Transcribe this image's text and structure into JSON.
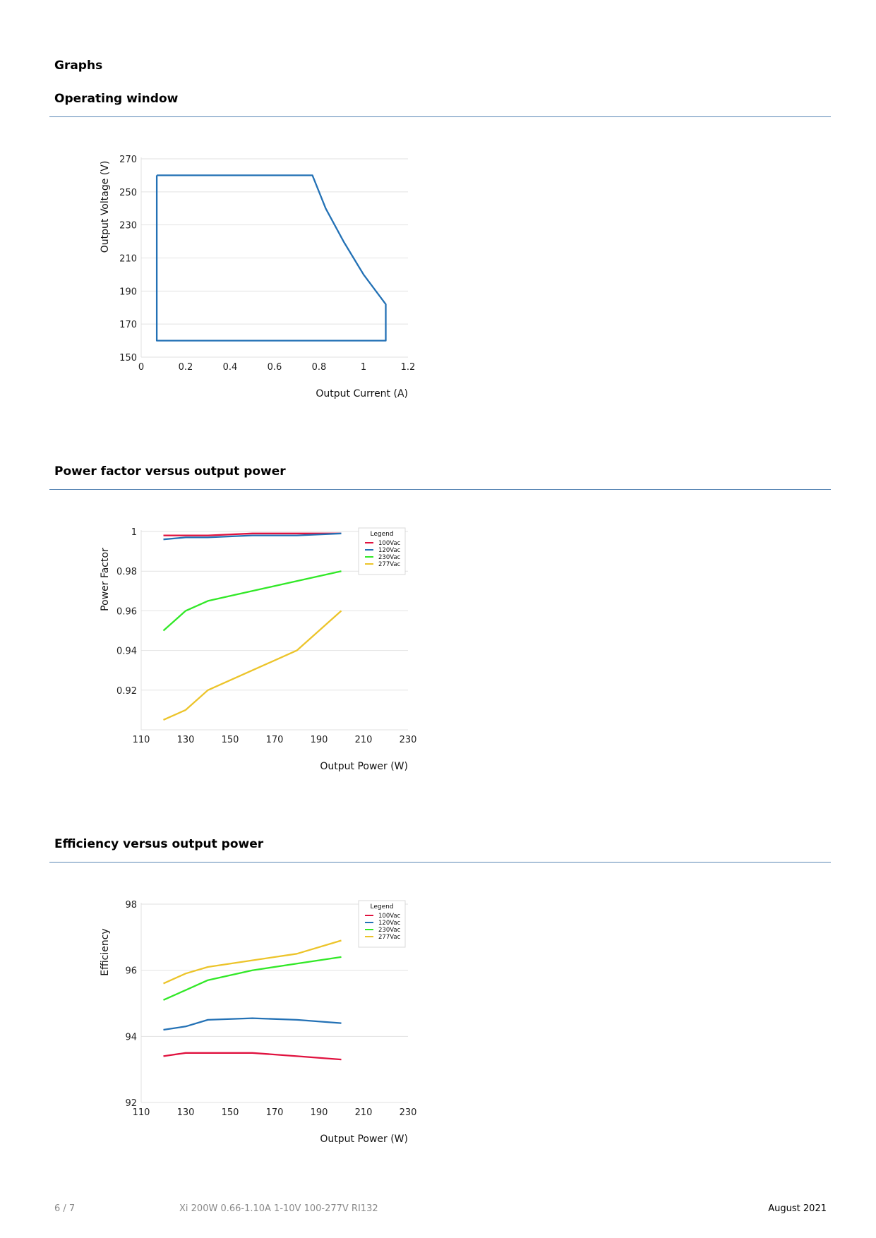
{
  "page": {
    "section_title": "Graphs",
    "footer": {
      "page_number": "6 / 7",
      "product": "Xi 200W 0.66-1.10A 1-10V 100-277V RI132",
      "date": "August 2021"
    }
  },
  "sections": [
    {
      "title": "Operating window"
    },
    {
      "title": "Power factor versus output power"
    },
    {
      "title": "Efficiency versus output power"
    }
  ],
  "colors": {
    "rule": "#5a87b5",
    "grid": "#e2e2e2",
    "tick_text": "#222222"
  },
  "chart_data": [
    {
      "type": "line",
      "title": "",
      "xlabel": "Output Current (A)",
      "ylabel": "Output Voltage (V)",
      "xlim": [
        0,
        1.2
      ],
      "ylim": [
        150,
        270
      ],
      "xticks": [
        0,
        0.2,
        0.4,
        0.6,
        0.8,
        1,
        1.2
      ],
      "xtick_labels": [
        "0",
        "0.2",
        "0.4",
        "0.6",
        "0.8",
        "1",
        "1.2"
      ],
      "yticks": [
        150,
        170,
        190,
        210,
        230,
        250,
        270
      ],
      "ytick_labels": [
        "150",
        "170",
        "190",
        "210",
        "230",
        "250",
        "270"
      ],
      "grid": true,
      "legend": null,
      "series": [
        {
          "color": "#2371b5",
          "x": [
            0.07,
            0.77,
            0.83,
            0.91,
            1.0,
            1.1,
            1.1,
            0.07,
            0.07
          ],
          "y": [
            260,
            260,
            240,
            220,
            200,
            182,
            160,
            160,
            260
          ]
        }
      ]
    },
    {
      "type": "line",
      "title": "",
      "xlabel": "Output Power (W)",
      "ylabel": "Power Factor",
      "xlim": [
        110,
        230
      ],
      "ylim": [
        0.9,
        1.0
      ],
      "xticks": [
        110,
        130,
        150,
        170,
        190,
        210,
        230
      ],
      "xtick_labels": [
        "110",
        "130",
        "150",
        "170",
        "190",
        "210",
        "230"
      ],
      "yticks": [
        0.92,
        0.94,
        0.96,
        0.98,
        1.0
      ],
      "ytick_labels": [
        "0.92",
        "0.94",
        "0.96",
        "0.98",
        "1"
      ],
      "grid": true,
      "legend": {
        "title": "Legend",
        "position": "top-right"
      },
      "x": [
        120,
        130,
        140,
        160,
        180,
        200
      ],
      "series": [
        {
          "name": "100Vac",
          "color": "#e0123f",
          "values": [
            0.998,
            0.998,
            0.998,
            0.999,
            0.999,
            0.999
          ]
        },
        {
          "name": "120Vac",
          "color": "#2371b5",
          "values": [
            0.996,
            0.997,
            0.997,
            0.998,
            0.998,
            0.999
          ]
        },
        {
          "name": "230Vac",
          "color": "#31e827",
          "values": [
            0.95,
            0.96,
            0.965,
            0.97,
            0.975,
            0.98
          ]
        },
        {
          "name": "277Vac",
          "color": "#ecc42a",
          "values": [
            0.905,
            0.91,
            0.92,
            0.93,
            0.94,
            0.96
          ]
        }
      ]
    },
    {
      "type": "line",
      "title": "",
      "xlabel": "Output Power (W)",
      "ylabel": "Efficiency",
      "xlim": [
        110,
        230
      ],
      "ylim": [
        92,
        98
      ],
      "xticks": [
        110,
        130,
        150,
        170,
        190,
        210,
        230
      ],
      "xtick_labels": [
        "110",
        "130",
        "150",
        "170",
        "190",
        "210",
        "230"
      ],
      "yticks": [
        92,
        94,
        96,
        98
      ],
      "ytick_labels": [
        "92",
        "94",
        "96",
        "98"
      ],
      "grid": true,
      "legend": {
        "title": "Legend",
        "position": "top-right"
      },
      "x": [
        120,
        130,
        140,
        160,
        180,
        200
      ],
      "series": [
        {
          "name": "100Vac",
          "color": "#e0123f",
          "values": [
            93.4,
            93.5,
            93.5,
            93.5,
            93.4,
            93.3
          ]
        },
        {
          "name": "120Vac",
          "color": "#2371b5",
          "values": [
            94.2,
            94.3,
            94.5,
            94.55,
            94.5,
            94.4
          ]
        },
        {
          "name": "230Vac",
          "color": "#31e827",
          "values": [
            95.1,
            95.4,
            95.7,
            96.0,
            96.2,
            96.4
          ]
        },
        {
          "name": "277Vac",
          "color": "#ecc42a",
          "values": [
            95.6,
            95.9,
            96.1,
            96.3,
            96.5,
            96.9
          ]
        }
      ]
    }
  ]
}
